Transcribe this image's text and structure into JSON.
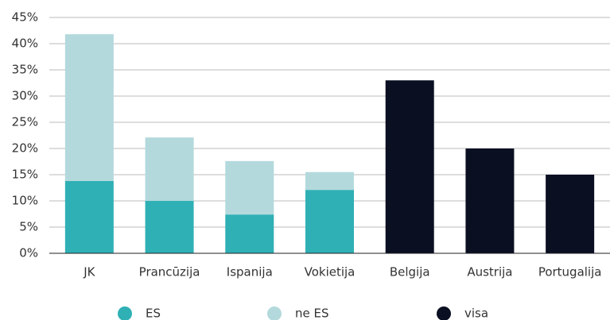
{
  "chart_data": {
    "type": "stacked_bar",
    "categories": [
      "JK",
      "Prancūzija",
      "Ispanija",
      "Vokietija",
      "Belgija",
      "Austrija",
      "Portugalija"
    ],
    "series": [
      {
        "name": "ES",
        "color": "#2fb0b5",
        "values": [
          13.8,
          10,
          7.4,
          12.1,
          null,
          null,
          null
        ]
      },
      {
        "name": "ne ES",
        "color": "#b3d9dc",
        "values": [
          28,
          12.1,
          10.2,
          3.4,
          null,
          null,
          null
        ]
      },
      {
        "name": "visa",
        "color": "#0b0f22",
        "values": [
          null,
          null,
          null,
          null,
          33,
          20,
          15
        ]
      }
    ],
    "ylim": [
      0,
      45
    ],
    "yticks": [
      {
        "value": 0,
        "label": "0%"
      },
      {
        "value": 5,
        "label": "5%"
      },
      {
        "value": 10,
        "label": "10%"
      },
      {
        "value": 15,
        "label": "15%"
      },
      {
        "value": 20,
        "label": "20%"
      },
      {
        "value": 25,
        "label": "25%"
      },
      {
        "value": 30,
        "label": "30%"
      },
      {
        "value": 35,
        "label": "35%"
      },
      {
        "value": 40,
        "label": "40%"
      },
      {
        "value": 45,
        "label": "45%"
      }
    ],
    "grid": true,
    "legend": "bottom"
  }
}
